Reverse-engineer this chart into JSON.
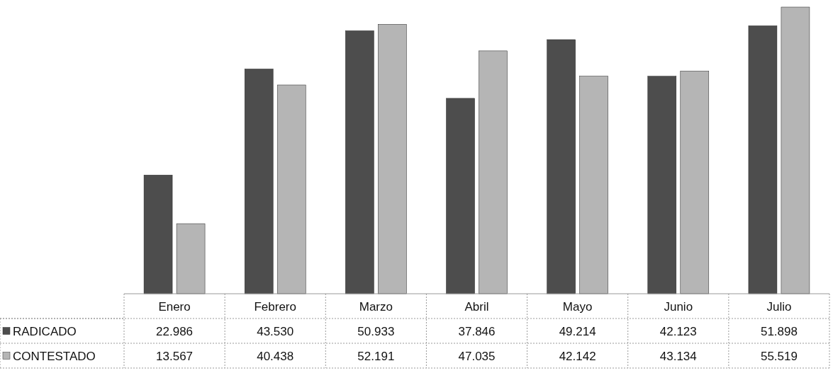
{
  "chart_data": {
    "type": "bar",
    "legend": "bottom left",
    "categories": [
      "Enero",
      "Febrero",
      "Marzo",
      "Abril",
      "Mayo",
      "Junio",
      "Julio"
    ],
    "series": [
      {
        "name": "RADICADO",
        "color": "#4d4d4d",
        "values": [
          22986,
          43530,
          50933,
          37846,
          49214,
          42123,
          51898
        ],
        "value_labels": [
          "22.986",
          "43.530",
          "50.933",
          "37.846",
          "49.214",
          "42.123",
          "51.898"
        ]
      },
      {
        "name": "CONTESTADO",
        "color": "#b5b5b5",
        "values": [
          13567,
          40438,
          52191,
          47035,
          42142,
          43134,
          55519
        ],
        "value_labels": [
          "13.567",
          "40.438",
          "52.191",
          "47.035",
          "42.142",
          "43.134",
          "55.519"
        ]
      }
    ]
  }
}
